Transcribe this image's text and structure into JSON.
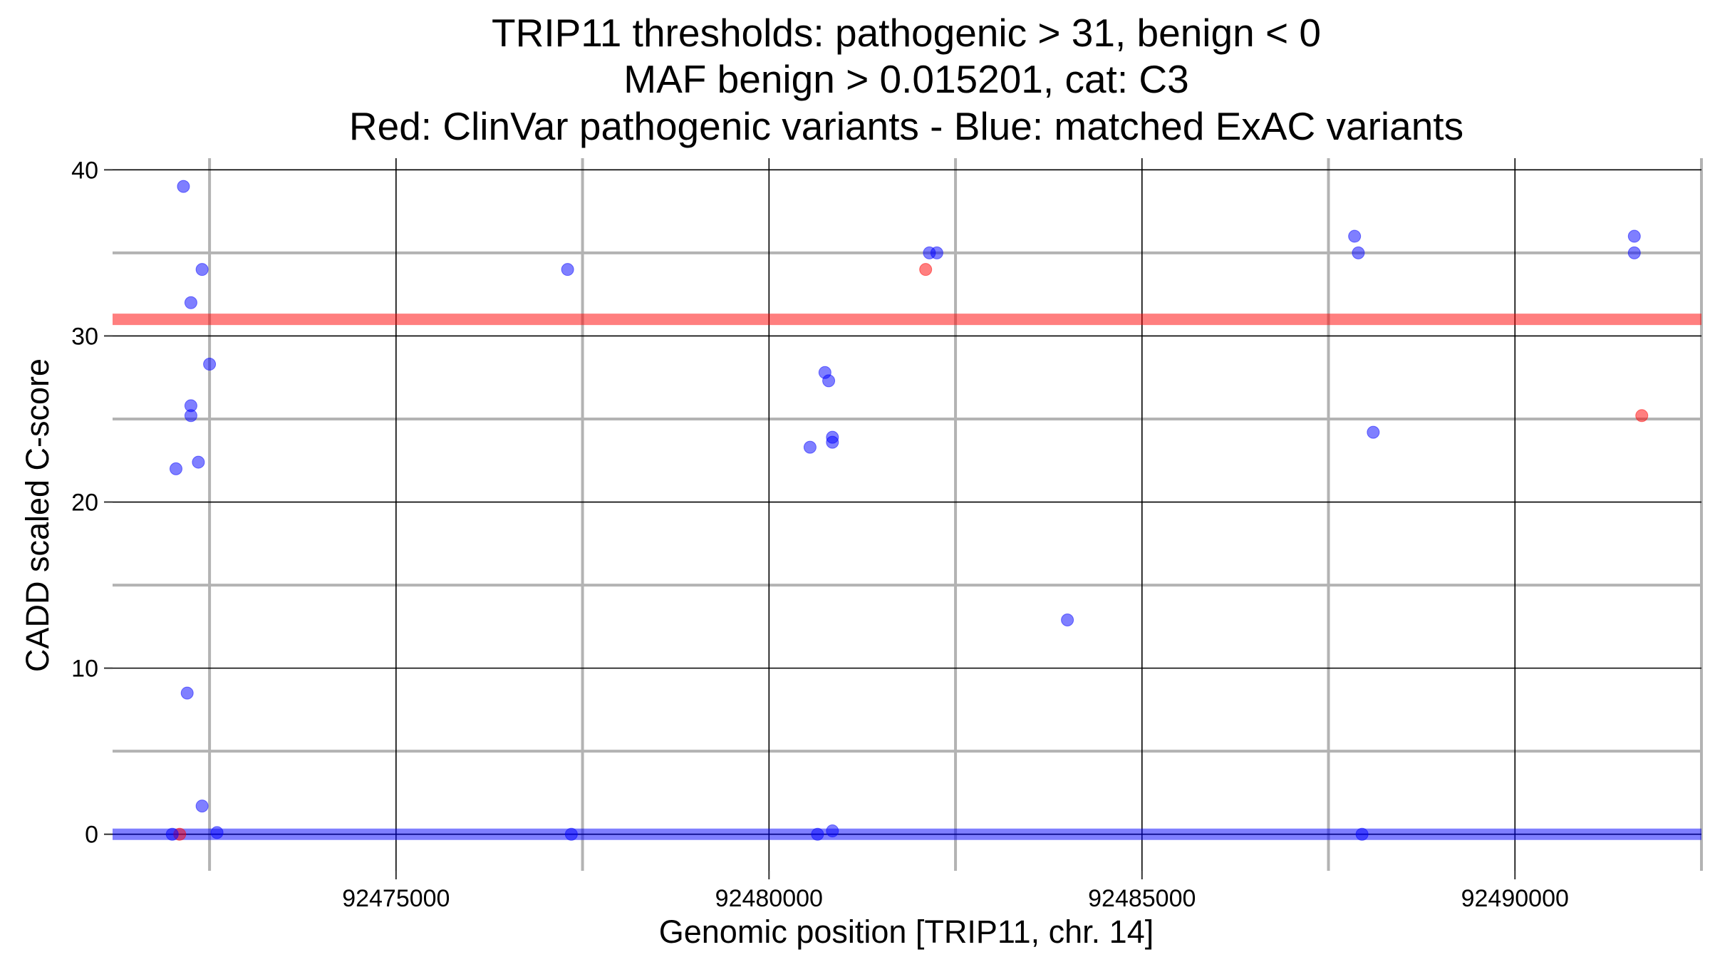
{
  "chart_data": {
    "type": "scatter",
    "title_lines": [
      "TRIP11 thresholds: pathogenic > 31, benign < 0",
      "MAF benign > 0.015201, cat: C3",
      "Red: ClinVar pathogenic variants - Blue: matched ExAC variants"
    ],
    "xlabel": "Genomic position [TRIP11, chr. 14]",
    "ylabel": "CADD scaled C-score",
    "xlim": [
      92471200,
      92492500
    ],
    "ylim": [
      -2.2,
      40.7
    ],
    "x_ticks": [
      {
        "value": 92475000,
        "label": "92475000"
      },
      {
        "value": 92480000,
        "label": "92480000"
      },
      {
        "value": 92485000,
        "label": "92485000"
      },
      {
        "value": 92490000,
        "label": "92490000"
      }
    ],
    "y_ticks": [
      {
        "value": 0,
        "label": "0"
      },
      {
        "value": 10,
        "label": "10"
      },
      {
        "value": 20,
        "label": "20"
      },
      {
        "value": 30,
        "label": "30"
      },
      {
        "value": 40,
        "label": "40"
      }
    ],
    "x_minor_gridlines": [
      92472500,
      92477500,
      92482500,
      92487500,
      92492500
    ],
    "y_minor_gridlines": [
      5,
      15,
      25,
      35
    ],
    "thresholds": [
      {
        "name": "pathogenic",
        "value": 31,
        "color": "#ff0000"
      },
      {
        "name": "benign",
        "value": 0,
        "color": "#0000ff"
      }
    ],
    "series": [
      {
        "color": "#ff0000",
        "points": [
          {
            "x": 92472100,
            "y": 0
          },
          {
            "x": 92482100,
            "y": 34
          },
          {
            "x": 92491700,
            "y": 25.2
          }
        ]
      },
      {
        "color": "#0000ff",
        "points": [
          {
            "x": 92472000,
            "y": 0
          },
          {
            "x": 92472050,
            "y": 22
          },
          {
            "x": 92472150,
            "y": 39
          },
          {
            "x": 92472200,
            "y": 8.5
          },
          {
            "x": 92472250,
            "y": 32
          },
          {
            "x": 92472250,
            "y": 25.8
          },
          {
            "x": 92472250,
            "y": 25.2
          },
          {
            "x": 92472350,
            "y": 22.4
          },
          {
            "x": 92472400,
            "y": 1.7
          },
          {
            "x": 92472400,
            "y": 34
          },
          {
            "x": 92472500,
            "y": 28.3
          },
          {
            "x": 92472600,
            "y": 0.1
          },
          {
            "x": 92477300,
            "y": 34
          },
          {
            "x": 92477350,
            "y": 0
          },
          {
            "x": 92480550,
            "y": 23.3
          },
          {
            "x": 92480650,
            "y": 0
          },
          {
            "x": 92480750,
            "y": 27.8
          },
          {
            "x": 92480800,
            "y": 27.3
          },
          {
            "x": 92480850,
            "y": 0.2
          },
          {
            "x": 92480850,
            "y": 23.9
          },
          {
            "x": 92480850,
            "y": 23.6
          },
          {
            "x": 92482150,
            "y": 35
          },
          {
            "x": 92482250,
            "y": 35
          },
          {
            "x": 92484000,
            "y": 12.9
          },
          {
            "x": 92487850,
            "y": 36
          },
          {
            "x": 92487900,
            "y": 35
          },
          {
            "x": 92487950,
            "y": 0
          },
          {
            "x": 92488100,
            "y": 24.2
          },
          {
            "x": 92491600,
            "y": 36
          },
          {
            "x": 92491600,
            "y": 35
          }
        ]
      }
    ],
    "grid": true,
    "legend": "none"
  }
}
